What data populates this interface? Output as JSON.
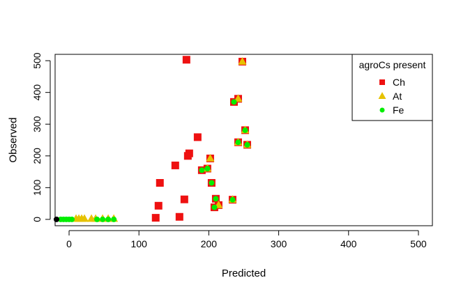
{
  "chart_data": {
    "type": "scatter",
    "title": "",
    "xlabel": "Predicted",
    "ylabel": "Observed",
    "xlim": [
      -20,
      520
    ],
    "ylim": [
      -20,
      520
    ],
    "xticks": [
      0,
      100,
      200,
      300,
      400,
      500
    ],
    "yticks": [
      0,
      100,
      200,
      300,
      400,
      500
    ],
    "grid": false,
    "legend": {
      "title": "agroCs present",
      "position": "top-right"
    },
    "series": [
      {
        "name": "Ch",
        "marker": "square",
        "color": "#EE1111",
        "points": [
          [
            168,
            503
          ],
          [
            248,
            497
          ],
          [
            242,
            380
          ],
          [
            236,
            370
          ],
          [
            252,
            281
          ],
          [
            242,
            243
          ],
          [
            255,
            235
          ],
          [
            184,
            259
          ],
          [
            172,
            208
          ],
          [
            170,
            200
          ],
          [
            152,
            170
          ],
          [
            202,
            192
          ],
          [
            198,
            160
          ],
          [
            190,
            155
          ],
          [
            130,
            115
          ],
          [
            204,
            115
          ],
          [
            165,
            63
          ],
          [
            210,
            65
          ],
          [
            234,
            62
          ],
          [
            128,
            43
          ],
          [
            214,
            45
          ],
          [
            208,
            38
          ],
          [
            124,
            5
          ],
          [
            158,
            8
          ]
        ]
      },
      {
        "name": "At",
        "marker": "triangle",
        "color": "#E6C200",
        "points": [
          [
            248,
            497
          ],
          [
            242,
            380
          ],
          [
            252,
            281
          ],
          [
            242,
            243
          ],
          [
            255,
            235
          ],
          [
            202,
            192
          ],
          [
            198,
            160
          ],
          [
            214,
            45
          ],
          [
            234,
            62
          ],
          [
            10,
            2
          ],
          [
            14,
            2
          ],
          [
            18,
            2
          ],
          [
            22,
            2
          ],
          [
            32,
            2
          ],
          [
            38,
            2
          ],
          [
            48,
            2
          ],
          [
            56,
            2
          ],
          [
            64,
            2
          ]
        ]
      },
      {
        "name": "Fe",
        "marker": "circle",
        "color": "#00EE00",
        "points": [
          [
            236,
            370
          ],
          [
            252,
            281
          ],
          [
            242,
            243
          ],
          [
            255,
            235
          ],
          [
            190,
            155
          ],
          [
            198,
            160
          ],
          [
            204,
            115
          ],
          [
            210,
            65
          ],
          [
            234,
            62
          ],
          [
            208,
            38
          ],
          [
            -12,
            0
          ],
          [
            -8,
            0
          ],
          [
            -4,
            0
          ],
          [
            0,
            0
          ],
          [
            4,
            0
          ],
          [
            40,
            0
          ],
          [
            48,
            0
          ],
          [
            56,
            0
          ],
          [
            64,
            0
          ]
        ]
      },
      {
        "marker": "circle",
        "color": "#000000",
        "points": [
          [
            -18,
            0
          ]
        ]
      }
    ]
  }
}
